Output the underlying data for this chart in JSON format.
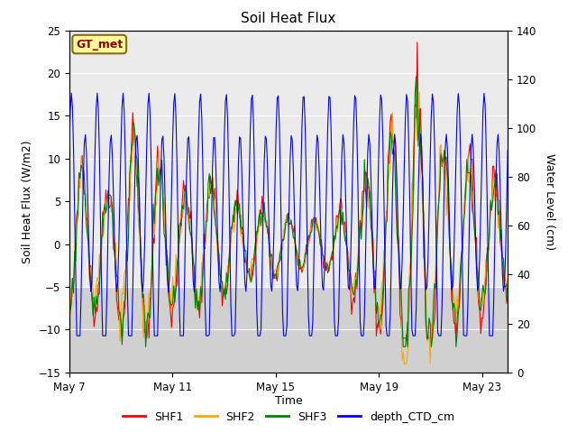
{
  "title": "Soil Heat Flux",
  "ylabel_left": "Soil Heat Flux (W/m2)",
  "ylabel_right": "Water Level (cm)",
  "xlabel": "Time",
  "ylim_left": [
    -15,
    25
  ],
  "ylim_right": [
    0,
    140
  ],
  "annotation_text": "GT_met",
  "annotation_color": "#8B0000",
  "annotation_bg": "#FFFF99",
  "annotation_border": "#8B6914",
  "plot_bg": "#DCDCDC",
  "legend_entries": [
    "SHF1",
    "SHF2",
    "SHF3",
    "depth_CTD_cm"
  ],
  "line_colors": [
    "red",
    "orange",
    "green",
    "blue"
  ],
  "xtick_labels": [
    "May 7",
    "May 11",
    "May 15",
    "May 19",
    "May 23"
  ],
  "yticks_left": [
    -15,
    -10,
    -5,
    0,
    5,
    10,
    15,
    20,
    25
  ],
  "yticks_right": [
    0,
    20,
    40,
    60,
    80,
    100,
    120,
    140
  ],
  "n_days": 17,
  "pts_per_day": 24
}
